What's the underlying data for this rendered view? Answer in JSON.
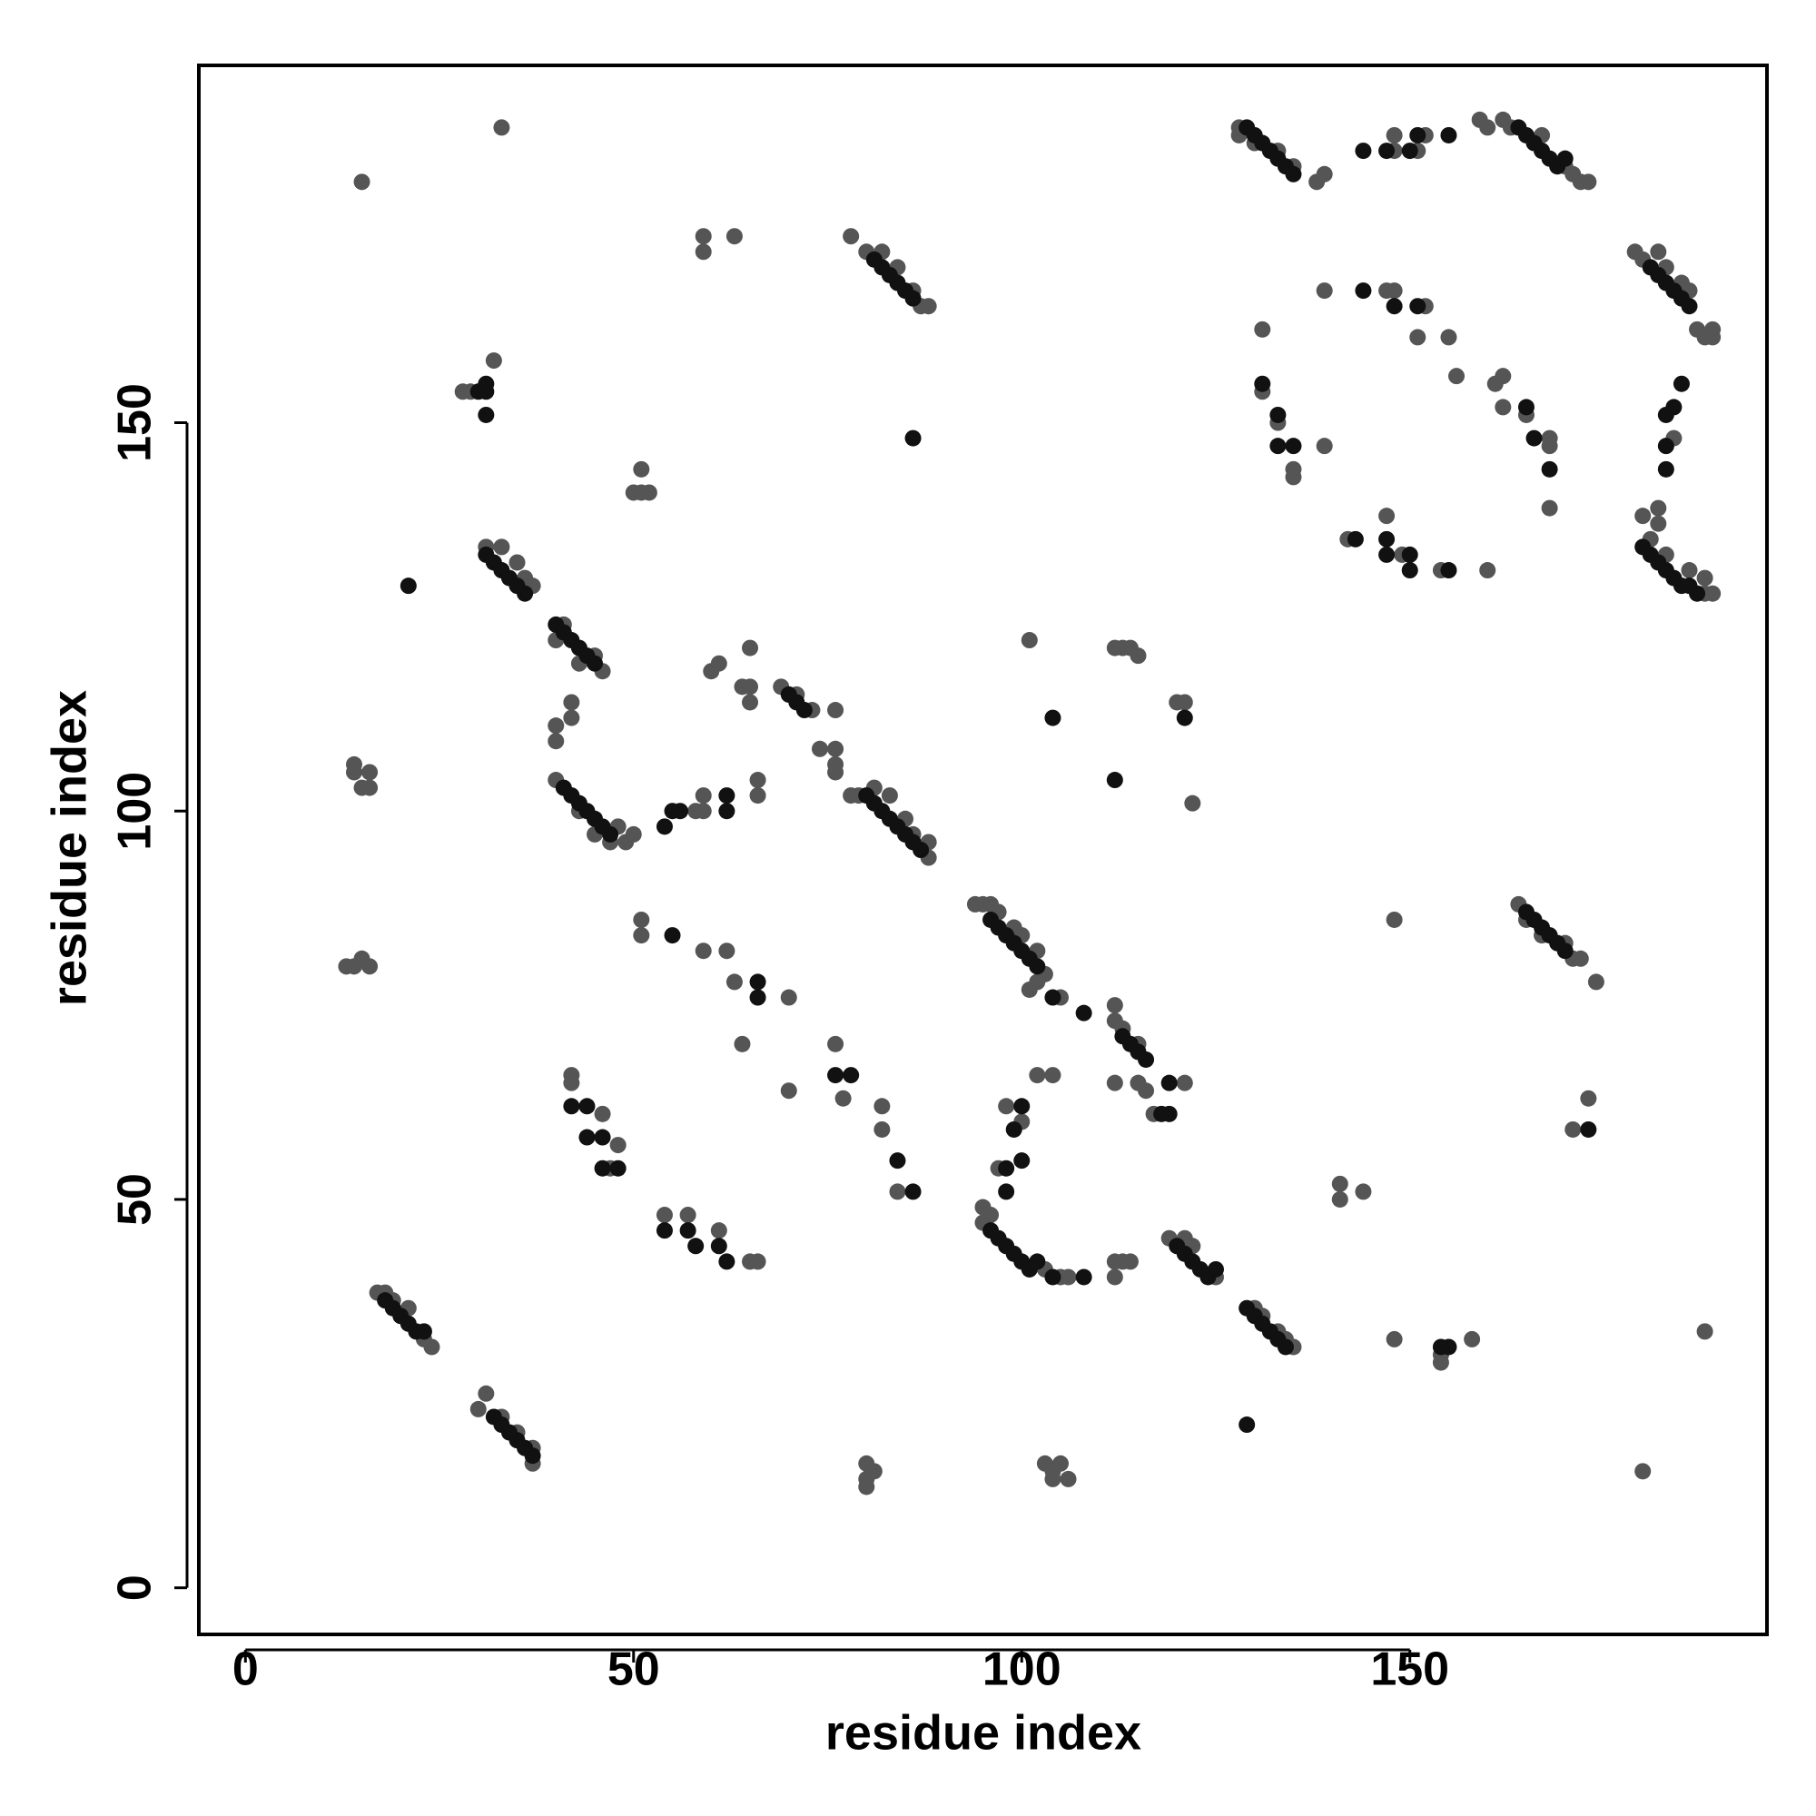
{
  "chart_data": {
    "type": "scatter",
    "xlabel": "residue index",
    "ylabel": "residue index",
    "xlim": [
      -6,
      196
    ],
    "ylim": [
      -6,
      196
    ],
    "xticks": [
      0,
      50,
      100,
      150
    ],
    "yticks": [
      0,
      50,
      100,
      150
    ],
    "series": [
      {
        "color": "#555555",
        "x": [
          33,
          15,
          59,
          59,
          63,
          78,
          28,
          29,
          32,
          51,
          50,
          51,
          52,
          31,
          33,
          35,
          36,
          37,
          40,
          41,
          43,
          45,
          46,
          42,
          42,
          40,
          40,
          40,
          43,
          45,
          47,
          48,
          49,
          50,
          14,
          14,
          16,
          16,
          15,
          13,
          14,
          15,
          16,
          58,
          59,
          59,
          60,
          61,
          64,
          65,
          65,
          65,
          69,
          71,
          73,
          76,
          74,
          76,
          76,
          76,
          66,
          66,
          78,
          79,
          81,
          83,
          85,
          86,
          88,
          88,
          51,
          51,
          59,
          62,
          63,
          70,
          64,
          76,
          77,
          82,
          82,
          84,
          70,
          42,
          42,
          46,
          48,
          47,
          54,
          57,
          61,
          65,
          66,
          80,
          82,
          84,
          86,
          87,
          88,
          94,
          95,
          96,
          97,
          99,
          100,
          102,
          103,
          101,
          101,
          112,
          113,
          114,
          115,
          120,
          121,
          122,
          102,
          105,
          112,
          112,
          112,
          115,
          116,
          117,
          121,
          113,
          115,
          98,
          100,
          102,
          104,
          97,
          95,
          95,
          96,
          103,
          105,
          106,
          112,
          113,
          114,
          112,
          119,
          121,
          122,
          125,
          130,
          131,
          133,
          134,
          135,
          80,
          80,
          81,
          80,
          103,
          104,
          105,
          106,
          104,
          17,
          18,
          19,
          21,
          23,
          24,
          30,
          31,
          33,
          35,
          37,
          37,
          141,
          141,
          144,
          148,
          154,
          154,
          158,
          188,
          180,
          148,
          164,
          165,
          167,
          170,
          171,
          172,
          174,
          171,
          173,
          128,
          128,
          130,
          133,
          135,
          138,
          139,
          148,
          151,
          152,
          148,
          159,
          160,
          162,
          163,
          167,
          170,
          171,
          172,
          173,
          179,
          180,
          182,
          183,
          185,
          186,
          187,
          188,
          189,
          189,
          139,
          147,
          148,
          152,
          151,
          155,
          156,
          131,
          131,
          133,
          135,
          135,
          139,
          161,
          162,
          162,
          165,
          168,
          168,
          168,
          184,
          142,
          147,
          149,
          154,
          160,
          180,
          182,
          182,
          181,
          183,
          186,
          188,
          189,
          188
        ],
        "y": [
          188,
          181,
          174,
          172,
          174,
          174,
          154,
          154,
          158,
          144,
          141,
          141,
          141,
          134,
          134,
          132,
          130,
          129,
          122,
          124,
          119,
          120,
          118,
          114,
          112,
          111,
          109,
          104,
          100,
          97,
          96,
          98,
          96,
          97,
          106,
          105,
          105,
          103,
          103,
          80,
          80,
          81,
          80,
          100,
          102,
          100,
          118,
          119,
          116,
          116,
          114,
          121,
          116,
          115,
          113,
          113,
          108,
          108,
          106,
          105,
          104,
          102,
          102,
          102,
          103,
          102,
          99,
          97,
          96,
          94,
          86,
          84,
          82,
          82,
          78,
          76,
          70,
          70,
          63,
          62,
          59,
          51,
          64,
          66,
          65,
          61,
          57,
          54,
          48,
          48,
          46,
          42,
          42,
          172,
          172,
          170,
          167,
          165,
          165,
          88,
          88,
          88,
          87,
          85,
          84,
          82,
          79,
          77,
          122,
          121,
          121,
          121,
          120,
          114,
          114,
          101,
          78,
          76,
          75,
          73,
          65,
          65,
          64,
          61,
          65,
          72,
          70,
          62,
          60,
          66,
          66,
          54,
          49,
          47,
          48,
          41,
          40,
          40,
          42,
          42,
          42,
          40,
          45,
          45,
          44,
          40,
          36,
          35,
          33,
          32,
          31,
          16,
          14,
          15,
          13,
          16,
          15,
          16,
          14,
          14,
          38,
          38,
          37,
          36,
          32,
          31,
          23,
          25,
          22,
          20,
          18,
          16,
          52,
          50,
          51,
          32,
          30,
          29,
          32,
          33,
          15,
          86,
          88,
          86,
          84,
          83,
          81,
          81,
          78,
          59,
          63,
          188,
          187,
          186,
          185,
          183,
          181,
          182,
          185,
          185,
          187,
          187,
          189,
          188,
          189,
          188,
          187,
          183,
          182,
          181,
          181,
          172,
          171,
          172,
          170,
          168,
          167,
          162,
          161,
          162,
          161,
          167,
          167,
          167,
          165,
          161,
          161,
          156,
          162,
          154,
          150,
          144,
          143,
          147,
          155,
          156,
          152,
          151,
          148,
          147,
          139,
          148,
          135,
          138,
          133,
          131,
          131,
          138,
          139,
          137,
          135,
          133,
          131,
          130,
          128,
          128
        ]
      },
      {
        "color": "#111111",
        "x": [
          31,
          32,
          33,
          34,
          35,
          36,
          40,
          41,
          42,
          43,
          44,
          45,
          41,
          42,
          43,
          44,
          45,
          46,
          47,
          54,
          55,
          56,
          62,
          62,
          70,
          71,
          72,
          80,
          81,
          82,
          83,
          84,
          85,
          86,
          87,
          55,
          66,
          66,
          76,
          78,
          84,
          86,
          42,
          44,
          44,
          46,
          46,
          48,
          54,
          57,
          58,
          61,
          62,
          81,
          82,
          83,
          84,
          85,
          86,
          86,
          30,
          31,
          31,
          31,
          21,
          96,
          97,
          98,
          99,
          100,
          101,
          102,
          104,
          112,
          121,
          104,
          108,
          113,
          114,
          115,
          116,
          118,
          119,
          119,
          98,
          98,
          100,
          100,
          99,
          96,
          97,
          98,
          99,
          100,
          101,
          102,
          104,
          108,
          120,
          121,
          122,
          123,
          124,
          125,
          129,
          130,
          131,
          132,
          133,
          134,
          129,
          18,
          19,
          20,
          21,
          22,
          23,
          32,
          33,
          34,
          35,
          36,
          37,
          154,
          155,
          165,
          166,
          167,
          168,
          169,
          170,
          173,
          129,
          130,
          131,
          132,
          133,
          134,
          135,
          144,
          147,
          150,
          151,
          155,
          164,
          165,
          166,
          167,
          168,
          169,
          170,
          181,
          182,
          183,
          184,
          185,
          186,
          144,
          148,
          151,
          131,
          133,
          133,
          135,
          165,
          166,
          168,
          185,
          184,
          183,
          183,
          183,
          147,
          147,
          150,
          150,
          155,
          180,
          181,
          182,
          183,
          184,
          185,
          186,
          187,
          143
        ],
        "y": [
          133,
          132,
          131,
          130,
          129,
          128,
          124,
          123,
          122,
          121,
          120,
          119,
          103,
          102,
          101,
          100,
          99,
          98,
          97,
          98,
          100,
          100,
          100,
          102,
          115,
          114,
          113,
          102,
          101,
          100,
          99,
          98,
          97,
          96,
          95,
          84,
          78,
          76,
          66,
          66,
          55,
          51,
          62,
          62,
          58,
          58,
          54,
          54,
          46,
          46,
          44,
          44,
          42,
          171,
          170,
          169,
          168,
          167,
          166,
          148,
          154,
          154,
          155,
          151,
          129,
          86,
          85,
          84,
          83,
          82,
          81,
          80,
          112,
          104,
          112,
          76,
          74,
          71,
          70,
          69,
          68,
          61,
          61,
          65,
          54,
          51,
          55,
          62,
          59,
          46,
          45,
          44,
          43,
          42,
          41,
          42,
          40,
          40,
          44,
          43,
          42,
          41,
          40,
          41,
          36,
          35,
          34,
          33,
          32,
          31,
          21,
          37,
          36,
          35,
          34,
          33,
          33,
          22,
          21,
          20,
          19,
          18,
          17,
          31,
          31,
          87,
          86,
          85,
          84,
          83,
          82,
          59,
          188,
          187,
          186,
          185,
          184,
          183,
          182,
          185,
          185,
          185,
          187,
          187,
          188,
          187,
          186,
          185,
          184,
          183,
          184,
          170,
          169,
          168,
          167,
          166,
          165,
          167,
          165,
          165,
          155,
          151,
          147,
          147,
          152,
          148,
          144,
          155,
          152,
          151,
          147,
          144,
          135,
          133,
          133,
          131,
          131,
          134,
          133,
          132,
          131,
          130,
          129,
          129,
          128,
          135
        ]
      }
    ]
  }
}
